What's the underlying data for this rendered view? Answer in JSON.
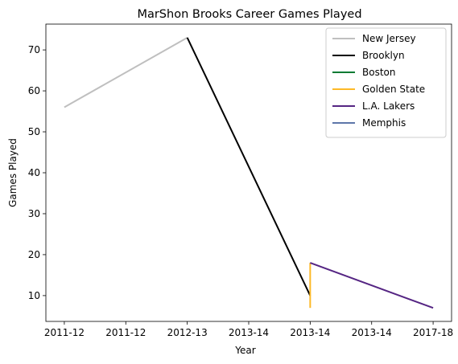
{
  "chart_data": {
    "type": "line",
    "title": "MarShon Brooks Career Games Played",
    "xlabel": "Year",
    "ylabel": "Games Played",
    "x_tick_labels": [
      "2011-12",
      "2011-12",
      "2012-13",
      "2013-14",
      "2013-14",
      "2013-14",
      "2017-18"
    ],
    "x_tick_positions": [
      0,
      1,
      2,
      3,
      4,
      5,
      6
    ],
    "xlim": [
      -0.3,
      6.3
    ],
    "ylim": [
      3.7,
      76.3
    ],
    "y_ticks": [
      10,
      20,
      30,
      40,
      50,
      60,
      70
    ],
    "grid": false,
    "legend_position": "top-right",
    "series": [
      {
        "name": "New Jersey",
        "color": "#bfbfbf",
        "points": [
          [
            0,
            56
          ],
          [
            2,
            73
          ]
        ]
      },
      {
        "name": "Brooklyn",
        "color": "#000000",
        "points": [
          [
            2,
            73
          ],
          [
            4,
            10
          ]
        ]
      },
      {
        "name": "Boston",
        "color": "#007a33",
        "points": [
          [
            4,
            7
          ],
          [
            4,
            7
          ]
        ]
      },
      {
        "name": "Golden State",
        "color": "#fdb927",
        "points": [
          [
            4,
            7
          ],
          [
            4,
            18
          ]
        ]
      },
      {
        "name": "L.A. Lakers",
        "color": "#552583",
        "points": [
          [
            4,
            18
          ],
          [
            6,
            7
          ]
        ]
      },
      {
        "name": "Memphis",
        "color": "#5d76a9",
        "points": [
          [
            6,
            7
          ],
          [
            6,
            7
          ]
        ]
      }
    ]
  }
}
